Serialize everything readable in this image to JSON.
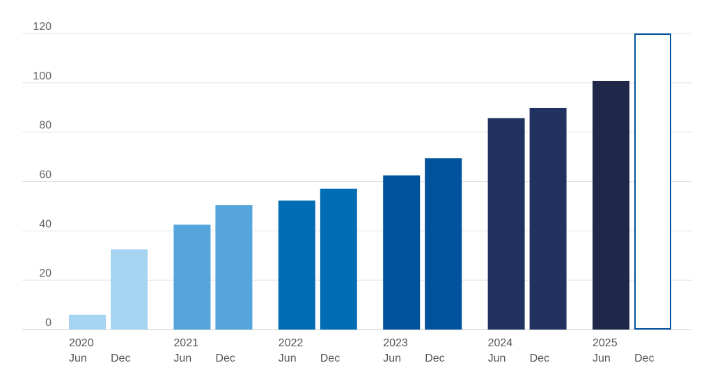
{
  "chart_data": {
    "type": "bar",
    "title": "",
    "xlabel": "",
    "ylabel": "",
    "ylim": [
      0,
      120
    ],
    "yticks": [
      0,
      20,
      40,
      60,
      80,
      100,
      120
    ],
    "grid": true,
    "categories": [
      {
        "year": "2020",
        "half": "Jun",
        "value": 6,
        "color": "#a6d5f2",
        "outline_only": false
      },
      {
        "year": "",
        "half": "Dec",
        "value": 32.5,
        "color": "#a6d5f2",
        "outline_only": false
      },
      {
        "year": "2021",
        "half": "Jun",
        "value": 42.5,
        "color": "#55a5dc",
        "outline_only": false
      },
      {
        "year": "",
        "half": "Dec",
        "value": 50.5,
        "color": "#55a5dc",
        "outline_only": false
      },
      {
        "year": "2022",
        "half": "Jun",
        "value": 52.3,
        "color": "#006cb4",
        "outline_only": false
      },
      {
        "year": "",
        "half": "Dec",
        "value": 57.1,
        "color": "#006cb4",
        "outline_only": false
      },
      {
        "year": "2023",
        "half": "Jun",
        "value": 62.5,
        "color": "#00529c",
        "outline_only": false
      },
      {
        "year": "",
        "half": "Dec",
        "value": 69.4,
        "color": "#00529c",
        "outline_only": false
      },
      {
        "year": "2024",
        "half": "Jun",
        "value": 85.7,
        "color": "#213261",
        "outline_only": false
      },
      {
        "year": "",
        "half": "Dec",
        "value": 89.8,
        "color": "#213261",
        "outline_only": false
      },
      {
        "year": "2025",
        "half": "Jun",
        "value": 100.8,
        "color": "#1f2848",
        "outline_only": false
      },
      {
        "year": "",
        "half": "Dec",
        "value": 120,
        "color": "#00529c",
        "outline_only": true
      }
    ]
  }
}
